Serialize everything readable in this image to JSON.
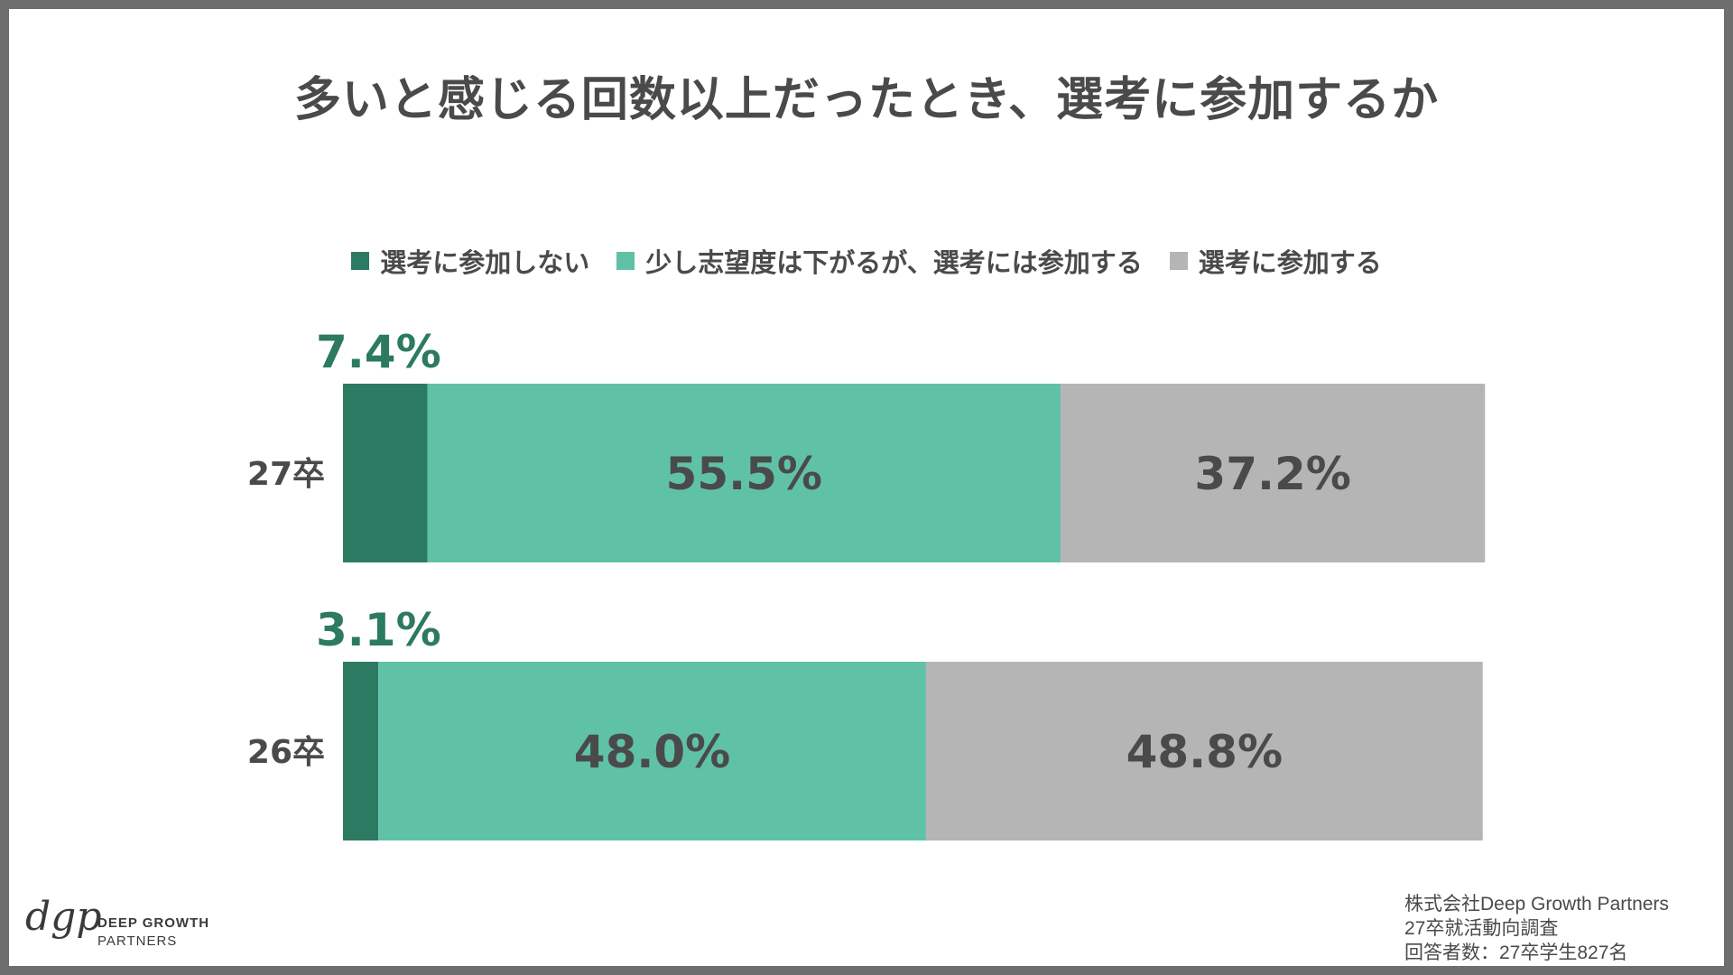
{
  "chart_data": {
    "type": "bar",
    "stacked": true,
    "orientation": "horizontal",
    "title": "多いと感じる回数以上だったとき、選考に参加するか",
    "categories": [
      "27卒",
      "26卒"
    ],
    "series": [
      {
        "name": "選考に参加しない",
        "color": "#2c7a62",
        "values": [
          7.4,
          3.1
        ],
        "labels": [
          "7.4%",
          "3.1%"
        ]
      },
      {
        "name": "少し志望度は下がるが、選考には参加する",
        "color": "#5fc2a6",
        "values": [
          55.5,
          48.0
        ],
        "labels": [
          "55.5%",
          "48.0%"
        ]
      },
      {
        "name": "選考に参加する",
        "color": "#b5b5b5",
        "values": [
          37.2,
          48.8
        ],
        "labels": [
          "37.2%",
          "48.8%"
        ]
      }
    ],
    "xlim": [
      0,
      100
    ],
    "legend_position": "top"
  },
  "footer": {
    "line1": "株式会社Deep Growth Partners",
    "line2": "27卒就活動向調査",
    "line3": "回答者数：27卒学生827名"
  },
  "logo": {
    "mark": "dgp",
    "line1": "DEEP GROWTH",
    "line2": "PARTNERS"
  }
}
